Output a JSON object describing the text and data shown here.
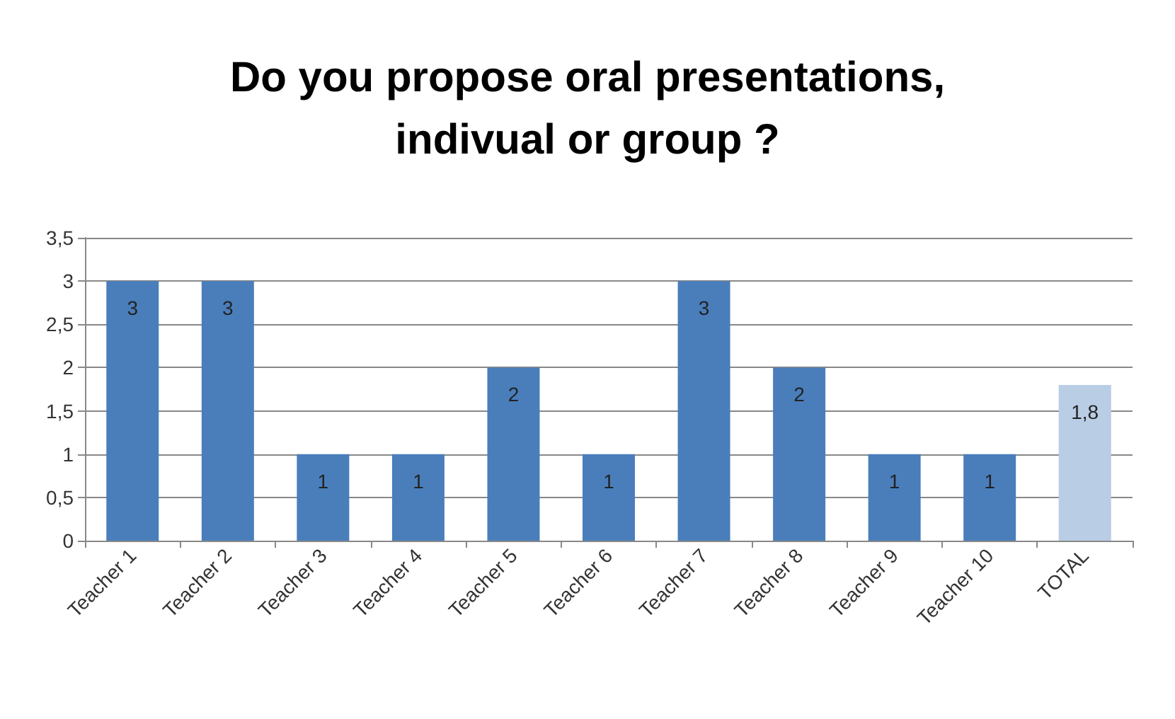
{
  "chart_data": {
    "type": "bar",
    "title": "Do you propose oral presentations,\nindivual or group ?",
    "categories": [
      "Teacher 1",
      "Teacher 2",
      "Teacher 3",
      "Teacher 4",
      "Teacher 5",
      "Teacher 6",
      "Teacher 7",
      "Teacher 8",
      "Teacher 9",
      "Teacher 10",
      "TOTAL"
    ],
    "values": [
      3,
      3,
      1,
      1,
      2,
      1,
      3,
      2,
      1,
      1,
      1.8
    ],
    "value_labels": [
      "3",
      "3",
      "1",
      "1",
      "2",
      "1",
      "3",
      "2",
      "1",
      "1",
      "1,8"
    ],
    "colors": [
      "#4a7ebb",
      "#4a7ebb",
      "#4a7ebb",
      "#4a7ebb",
      "#4a7ebb",
      "#4a7ebb",
      "#4a7ebb",
      "#4a7ebb",
      "#4a7ebb",
      "#4a7ebb",
      "#b9cde5"
    ],
    "ylim": [
      0,
      3.5
    ],
    "yticks": [
      0,
      {
        "value": 0.5,
        "label": "0,5"
      },
      1,
      {
        "value": 1.5,
        "label": "1,5"
      },
      2,
      {
        "value": 2.5,
        "label": "2,5"
      },
      3,
      {
        "value": 3.5,
        "label": "3,5"
      }
    ],
    "grid": "y"
  }
}
